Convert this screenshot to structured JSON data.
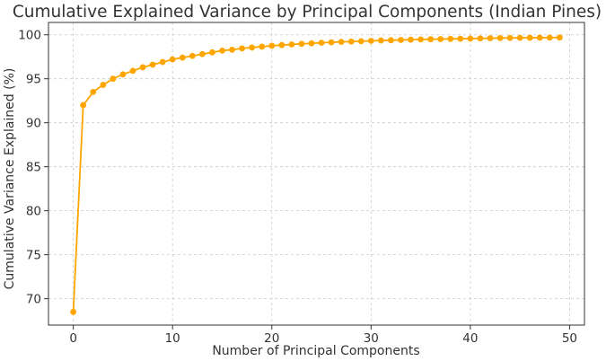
{
  "chart_data": {
    "type": "line",
    "title": "Cumulative Explained Variance by Principal Components (Indian Pines)",
    "xlabel": "Number of Principal Components",
    "ylabel": "Cumulative Variance Explained (%)",
    "xlim": [
      -2.5,
      51.5
    ],
    "ylim": [
      67,
      101.4
    ],
    "xticks": [
      0,
      10,
      20,
      30,
      40,
      50
    ],
    "yticks": [
      70,
      75,
      80,
      85,
      90,
      95,
      100
    ],
    "grid": true,
    "color": "#FFA500",
    "series": [
      {
        "x": [
          0,
          1,
          2,
          3,
          4,
          5,
          6,
          7,
          8,
          9,
          10,
          11,
          12,
          13,
          14,
          15,
          16,
          17,
          18,
          19,
          20,
          21,
          22,
          23,
          24,
          25,
          26,
          27,
          28,
          29,
          30,
          31,
          32,
          33,
          34,
          35,
          36,
          37,
          38,
          39,
          40,
          41,
          42,
          43,
          44,
          45,
          46,
          47,
          48,
          49
        ],
        "values": [
          68.5,
          92.0,
          93.5,
          94.3,
          95.0,
          95.5,
          95.9,
          96.3,
          96.6,
          96.9,
          97.2,
          97.4,
          97.6,
          97.8,
          98.0,
          98.2,
          98.3,
          98.45,
          98.55,
          98.65,
          98.75,
          98.83,
          98.9,
          98.97,
          99.03,
          99.09,
          99.14,
          99.19,
          99.23,
          99.27,
          99.31,
          99.35,
          99.38,
          99.41,
          99.44,
          99.47,
          99.49,
          99.51,
          99.53,
          99.55,
          99.57,
          99.59,
          99.61,
          99.63,
          99.64,
          99.65,
          99.66,
          99.67,
          99.68,
          99.69
        ]
      }
    ]
  }
}
